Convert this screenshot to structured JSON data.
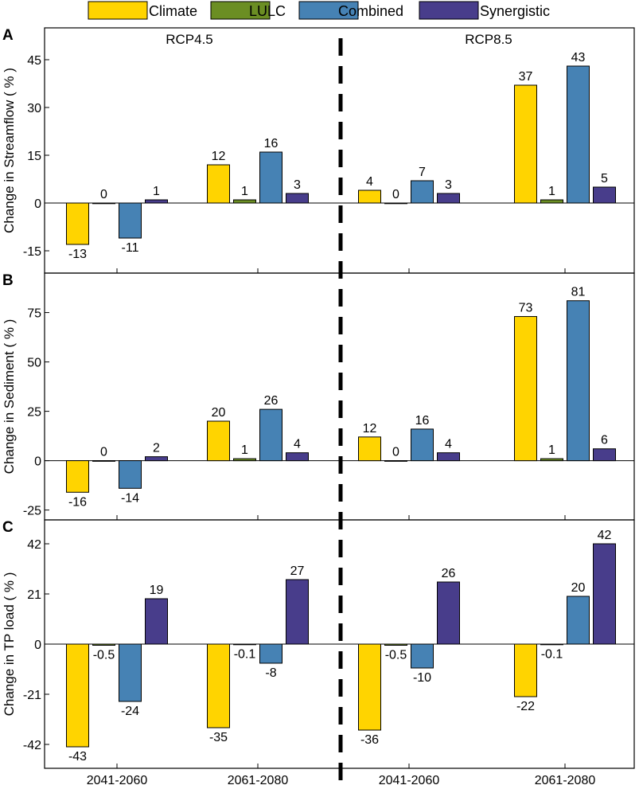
{
  "chart_data": {
    "type": "bar",
    "legend": [
      {
        "name": "Climate",
        "color": "#FFD400"
      },
      {
        "name": "LULC",
        "color": "#6B8E23"
      },
      {
        "name": "Combined",
        "color": "#4682B4"
      },
      {
        "name": "Synergistic",
        "color": "#483D8B"
      }
    ],
    "scenarios": [
      "RCP4.5",
      "RCP8.5"
    ],
    "x_tick_labels": [
      "2041-2060",
      "2061-2080",
      "2041-2060",
      "2061-2080"
    ],
    "panels": [
      {
        "letter": "A",
        "ylabel": "Change in Streamflow ( % )",
        "ylim": [
          -22,
          55
        ],
        "yticks": [
          -15,
          0,
          15,
          30,
          45
        ],
        "groups": [
          {
            "values": [
              -13,
              0,
              -11,
              1
            ],
            "labels": [
              "-13",
              "0",
              "-11",
              "1"
            ]
          },
          {
            "values": [
              12,
              1,
              16,
              3
            ],
            "labels": [
              "12",
              "1",
              "16",
              "3"
            ]
          },
          {
            "values": [
              4,
              0,
              7,
              3
            ],
            "labels": [
              "4",
              "0",
              "7",
              "3"
            ]
          },
          {
            "values": [
              37,
              1,
              43,
              5
            ],
            "labels": [
              "37",
              "1",
              "43",
              "5"
            ]
          }
        ]
      },
      {
        "letter": "B",
        "ylabel": "Change in Sediment ( % )",
        "ylim": [
          -30,
          95
        ],
        "yticks": [
          -25,
          0,
          25,
          50,
          75
        ],
        "groups": [
          {
            "values": [
              -16,
              0,
              -14,
              2
            ],
            "labels": [
              "-16",
              "0",
              "-14",
              "2"
            ]
          },
          {
            "values": [
              20,
              1,
              26,
              4
            ],
            "labels": [
              "20",
              "1",
              "26",
              "4"
            ]
          },
          {
            "values": [
              12,
              0,
              16,
              4
            ],
            "labels": [
              "12",
              "0",
              "16",
              "4"
            ]
          },
          {
            "values": [
              73,
              1,
              81,
              6
            ],
            "labels": [
              "73",
              "1",
              "81",
              "6"
            ]
          }
        ]
      },
      {
        "letter": "C",
        "ylabel": "Change in TP load ( % )",
        "ylim": [
          -52,
          52
        ],
        "yticks": [
          -42,
          -21,
          0,
          21,
          42
        ],
        "groups": [
          {
            "values": [
              -43,
              -0.5,
              -24,
              19
            ],
            "labels": [
              "-43",
              "-0.5",
              "-24",
              "19"
            ]
          },
          {
            "values": [
              -35,
              -0.1,
              -8,
              27
            ],
            "labels": [
              "-35",
              "-0.1",
              "-8",
              "27"
            ]
          },
          {
            "values": [
              -36,
              -0.5,
              -10,
              26
            ],
            "labels": [
              "-36",
              "-0.5",
              "-10",
              "26"
            ]
          },
          {
            "values": [
              -22,
              -0.1,
              20,
              42
            ],
            "labels": [
              "-22",
              "-0.1",
              "20",
              "42"
            ]
          }
        ]
      }
    ]
  }
}
